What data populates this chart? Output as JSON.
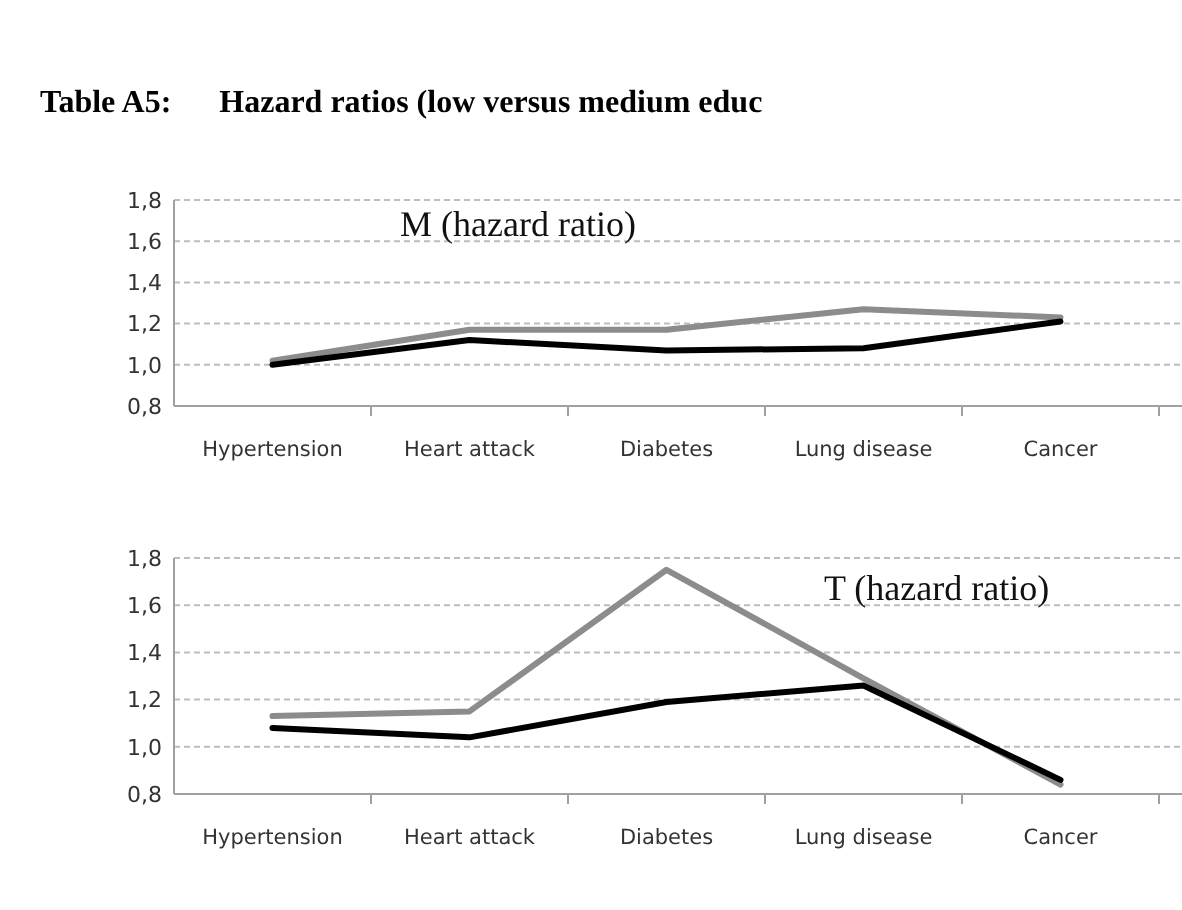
{
  "chart_data": [
    {
      "type": "line",
      "title": "Table A5:      Hazard ratios (low versus medium educ",
      "categories": [
        "Hypertension",
        "Heart attack",
        "Diabetes",
        "Lung disease",
        "Cancer"
      ],
      "series": [
        {
          "color": "#8c8c8c",
          "values": [
            1.02,
            1.17,
            1.17,
            1.27,
            1.23
          ]
        },
        {
          "color": "#000000",
          "values": [
            1.0,
            1.12,
            1.07,
            1.08,
            1.21
          ]
        }
      ],
      "ylim": [
        0.8,
        1.8
      ],
      "yticks": [
        {
          "value": 0.8,
          "label": "0,8"
        },
        {
          "value": 1.0,
          "label": "1,0"
        },
        {
          "value": 1.2,
          "label": "1,2"
        },
        {
          "value": 1.4,
          "label": "1,4"
        },
        {
          "value": 1.6,
          "label": "1,6"
        },
        {
          "value": 1.8,
          "label": "1,8"
        }
      ],
      "grid": "y",
      "annotations": [
        "M (hazard ratio)"
      ]
    },
    {
      "type": "line",
      "categories": [
        "Hypertension",
        "Heart attack",
        "Diabetes",
        "Lung disease",
        "Cancer"
      ],
      "series": [
        {
          "color": "#8c8c8c",
          "values": [
            1.13,
            1.15,
            1.75,
            1.29,
            0.84
          ]
        },
        {
          "color": "#000000",
          "values": [
            1.08,
            1.04,
            1.19,
            1.26,
            0.86
          ]
        }
      ],
      "ylim": [
        0.8,
        1.8
      ],
      "yticks": [
        {
          "value": 0.8,
          "label": "0,8"
        },
        {
          "value": 1.0,
          "label": "1,0"
        },
        {
          "value": 1.2,
          "label": "1,2"
        },
        {
          "value": 1.4,
          "label": "1,4"
        },
        {
          "value": 1.6,
          "label": "1,6"
        },
        {
          "value": 1.8,
          "label": "1,8"
        }
      ],
      "grid": "y",
      "annotations": [
        "T (hazard ratio)"
      ]
    }
  ]
}
